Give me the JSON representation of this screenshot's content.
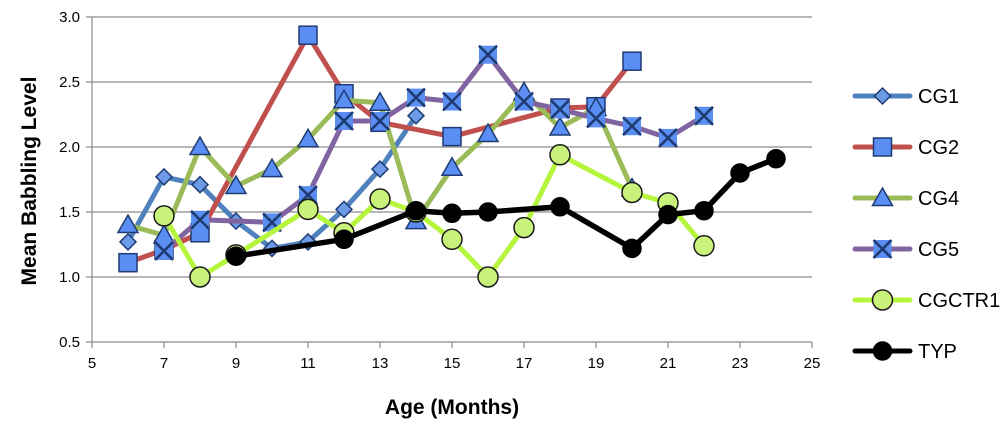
{
  "chart_data": {
    "type": "line",
    "title": "",
    "xlabel": "Age (Months)",
    "ylabel": "Mean Babbling Level",
    "xlim": [
      5,
      25
    ],
    "ylim": [
      0.5,
      3.0
    ],
    "x_ticks": [
      5,
      7,
      9,
      11,
      13,
      15,
      17,
      19,
      21,
      23,
      25
    ],
    "y_ticks": [
      0.5,
      1.0,
      1.5,
      2.0,
      2.5,
      3.0
    ],
    "x_tick_labels": [
      "5",
      "7",
      "9",
      "11",
      "13",
      "15",
      "17",
      "19",
      "21",
      "23",
      "25"
    ],
    "y_tick_labels": [
      "0.5",
      "1.0",
      "1.5",
      "2.0",
      "2.5",
      "3.0"
    ],
    "grid": "horizontal",
    "legend_position": "right",
    "series": [
      {
        "name": "CG1",
        "color": "#4F81BD",
        "marker": "diamond",
        "marker_fill": "#6E9BE6",
        "x": [
          6,
          7,
          8,
          9,
          10,
          11,
          12,
          13,
          14
        ],
        "y": [
          1.27,
          1.77,
          1.71,
          1.43,
          1.22,
          1.27,
          1.52,
          1.83,
          2.24
        ]
      },
      {
        "name": "CG2",
        "color": "#C0504D",
        "marker": "square",
        "marker_fill": "#5B8EF2",
        "x": [
          6,
          7,
          8,
          11,
          12,
          13,
          15,
          18,
          19,
          20
        ],
        "y": [
          1.11,
          1.21,
          1.34,
          2.86,
          2.41,
          2.19,
          2.08,
          2.3,
          2.31,
          2.66
        ]
      },
      {
        "name": "CG4",
        "color": "#9BBB59",
        "marker": "triangle",
        "marker_fill": "#5B8EF2",
        "x": [
          6,
          7,
          8,
          9,
          10,
          11,
          12,
          13,
          14,
          15,
          16,
          17,
          18,
          19,
          20
        ],
        "y": [
          1.4,
          1.32,
          2.0,
          1.7,
          1.83,
          2.06,
          2.36,
          2.34,
          1.43,
          1.84,
          2.1,
          2.42,
          2.15,
          2.3,
          1.68
        ]
      },
      {
        "name": "CG5",
        "color": "#8064A2",
        "marker": "x",
        "marker_fill": "#5B8EF2",
        "x": [
          7,
          8,
          10,
          11,
          12,
          13,
          14,
          15,
          16,
          17,
          18,
          19,
          20,
          21,
          22
        ],
        "y": [
          1.2,
          1.44,
          1.42,
          1.63,
          2.2,
          2.2,
          2.38,
          2.35,
          2.71,
          2.35,
          2.29,
          2.22,
          2.16,
          2.07,
          2.24
        ]
      },
      {
        "name": "CGCTR1",
        "color": "#B5F53C",
        "marker": "circle",
        "marker_fill": "#C8F27A",
        "x": [
          7,
          8,
          9,
          11,
          12,
          13,
          14,
          15,
          16,
          17,
          18,
          20,
          21,
          22
        ],
        "y": [
          1.47,
          1.0,
          1.17,
          1.52,
          1.34,
          1.6,
          1.5,
          1.29,
          1.0,
          1.38,
          1.94,
          1.65,
          1.57,
          1.24
        ]
      },
      {
        "name": "TYP",
        "color": "#000000",
        "marker": "circle",
        "marker_fill": "#000000",
        "x": [
          9,
          12,
          14,
          15,
          16,
          18,
          20,
          21,
          22,
          23,
          24
        ],
        "y": [
          1.16,
          1.29,
          1.51,
          1.49,
          1.5,
          1.54,
          1.22,
          1.48,
          1.51,
          1.8,
          1.91
        ]
      }
    ]
  }
}
